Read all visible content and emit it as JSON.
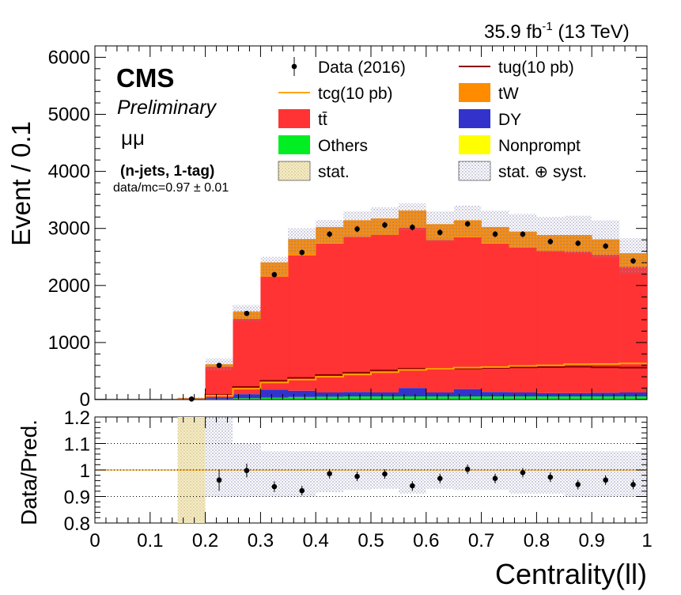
{
  "header": {
    "lumi_value": "35.9 fb",
    "lumi_exp": "-1",
    "energy": "(13 TeV)"
  },
  "labels": {
    "cms": "CMS",
    "preliminary": "Preliminary",
    "channel": "μμ",
    "selection": "(n-jets, 1-tag)",
    "ratio_text": "data/mc=0.97 ± 0.01"
  },
  "legend": [
    {
      "key": "data",
      "label": "Data (2016)",
      "style": "marker",
      "color": "#000000"
    },
    {
      "key": "tug",
      "label": "tug(10 pb)",
      "style": "line",
      "color": "#8b0000"
    },
    {
      "key": "tcg",
      "label": "tcg(10 pb)",
      "style": "line",
      "color": "#ffa500"
    },
    {
      "key": "tw",
      "label": "tW",
      "style": "fill",
      "color": "#ff8c00"
    },
    {
      "key": "tt",
      "label": "tt̄",
      "style": "fill",
      "color": "#ff3333"
    },
    {
      "key": "dy",
      "label": "DY",
      "style": "fill",
      "color": "#3333cc"
    },
    {
      "key": "others",
      "label": "Others",
      "style": "fill",
      "color": "#00ee22"
    },
    {
      "key": "nonprompt",
      "label": "Nonprompt",
      "style": "fill",
      "color": "#ffff00"
    },
    {
      "key": "stat",
      "label": "stat.",
      "style": "hatch-yellow",
      "color": "#e8d8a0"
    },
    {
      "key": "statsyst",
      "label": "stat. ⊕ syst.",
      "style": "hatch-blue",
      "color": "#9999bb"
    }
  ],
  "chart_data": [
    {
      "type": "bar",
      "subtype": "stacked-histogram",
      "ylabel": "Event / 0.1",
      "ylim": [
        0,
        6200
      ],
      "yticks": [
        "0",
        "1000",
        "2000",
        "3000",
        "4000",
        "5000",
        "6000"
      ],
      "xlim": [
        0,
        1
      ],
      "bin_width": 0.05,
      "x": [
        0.025,
        0.075,
        0.125,
        0.175,
        0.225,
        0.275,
        0.325,
        0.375,
        0.425,
        0.475,
        0.525,
        0.575,
        0.625,
        0.675,
        0.725,
        0.775,
        0.825,
        0.875,
        0.925,
        0.975
      ],
      "series": [
        {
          "name": "Others",
          "color": "#00ee22",
          "values": [
            0,
            0,
            0,
            5,
            15,
            25,
            35,
            45,
            50,
            55,
            55,
            55,
            55,
            55,
            55,
            55,
            55,
            55,
            55,
            55
          ]
        },
        {
          "name": "DY",
          "color": "#3333cc",
          "values": [
            0,
            0,
            0,
            5,
            20,
            70,
            140,
            110,
            75,
            80,
            70,
            150,
            70,
            130,
            80,
            70,
            60,
            60,
            65,
            70
          ]
        },
        {
          "name": "tt̄",
          "color": "#ff3333",
          "values": [
            0,
            0,
            0,
            15,
            540,
            1320,
            1980,
            2370,
            2610,
            2720,
            2760,
            2810,
            2670,
            2660,
            2600,
            2540,
            2490,
            2480,
            2420,
            2200
          ]
        },
        {
          "name": "tW",
          "color": "#ff8c00",
          "values": [
            0,
            0,
            0,
            2,
            45,
            130,
            250,
            290,
            290,
            290,
            290,
            300,
            280,
            300,
            290,
            280,
            280,
            290,
            270,
            240
          ]
        }
      ],
      "lines": [
        {
          "name": "tug(10 pb)",
          "color": "#8b0000",
          "values": [
            0,
            0,
            0,
            5,
            80,
            220,
            330,
            380,
            430,
            470,
            510,
            540,
            540,
            545,
            555,
            565,
            570,
            575,
            565,
            560
          ]
        },
        {
          "name": "tcg(10 pb)",
          "color": "#ffa500",
          "values": [
            0,
            0,
            0,
            5,
            70,
            190,
            300,
            350,
            400,
            440,
            480,
            520,
            540,
            560,
            570,
            590,
            600,
            620,
            625,
            635
          ]
        }
      ],
      "data": {
        "name": "Data (2016)",
        "values": [
          null,
          null,
          null,
          10,
          600,
          1510,
          2190,
          2580,
          2900,
          2990,
          3060,
          3020,
          2930,
          3080,
          2900,
          2900,
          2770,
          2740,
          2690,
          2430
        ],
        "yerr": [
          0,
          0,
          0,
          3,
          25,
          40,
          47,
          51,
          54,
          55,
          55,
          55,
          54,
          55,
          54,
          54,
          53,
          52,
          52,
          49
        ]
      },
      "syst_band": {
        "up": [
          0,
          0,
          0,
          40,
          720,
          1660,
          2500,
          3000,
          3150,
          3300,
          3370,
          3440,
          3300,
          3400,
          3310,
          3250,
          3200,
          3220,
          3140,
          2830
        ],
        "down": [
          0,
          0,
          0,
          0,
          520,
          1380,
          2180,
          2560,
          2740,
          2840,
          2880,
          2970,
          2770,
          2860,
          2750,
          2660,
          2590,
          2560,
          2480,
          2200
        ]
      }
    },
    {
      "type": "scatter",
      "subtype": "ratio",
      "xlabel": "Centrality(ll)",
      "ylabel": "Data/Pred.",
      "ylim": [
        0.8,
        1.2
      ],
      "yticks": [
        "0.8",
        "0.9",
        "1",
        "1.1",
        "1.2"
      ],
      "xticks": [
        "0",
        "0.1",
        "0.2",
        "0.3",
        "0.4",
        "0.5",
        "0.6",
        "0.7",
        "0.8",
        "0.9",
        "1"
      ],
      "x": [
        0.225,
        0.275,
        0.325,
        0.375,
        0.425,
        0.475,
        0.525,
        0.575,
        0.625,
        0.675,
        0.725,
        0.775,
        0.825,
        0.875,
        0.925,
        0.975
      ],
      "values": [
        0.962,
        0.998,
        0.937,
        0.922,
        0.986,
        0.976,
        0.985,
        0.94,
        0.968,
        1.003,
        0.968,
        0.99,
        0.973,
        0.945,
        0.962,
        0.945
      ],
      "yerr": [
        0.04,
        0.026,
        0.02,
        0.018,
        0.018,
        0.018,
        0.018,
        0.018,
        0.018,
        0.018,
        0.018,
        0.018,
        0.018,
        0.018,
        0.018,
        0.018
      ],
      "stat_band": [
        {
          "x0": 0.15,
          "x1": 0.2,
          "low": 0.8,
          "high": 1.2
        }
      ],
      "syst_band": {
        "x0": [
          0.2,
          0.25,
          0.3,
          0.35,
          0.4,
          0.45,
          0.5,
          0.55,
          0.6,
          0.65,
          0.7,
          0.75,
          0.8,
          0.85,
          0.9,
          0.95
        ],
        "low": [
          0.9,
          0.9,
          0.9,
          0.9,
          0.915,
          0.925,
          0.93,
          0.91,
          0.93,
          0.925,
          0.925,
          0.91,
          0.91,
          0.9,
          0.9,
          0.9
        ],
        "high": [
          1.2,
          1.1,
          1.07,
          1.07,
          1.07,
          1.07,
          1.07,
          1.07,
          1.07,
          1.07,
          1.07,
          1.07,
          1.07,
          1.07,
          1.07,
          1.07
        ]
      }
    }
  ]
}
